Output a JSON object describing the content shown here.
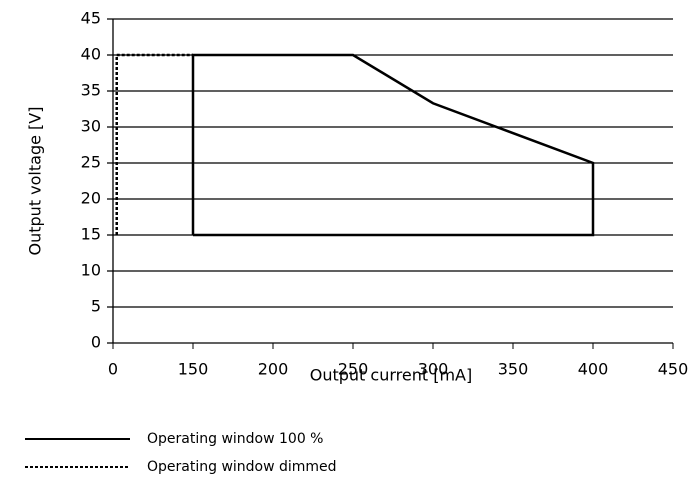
{
  "chart_data": {
    "type": "line",
    "xlabel": "Output current [mA]",
    "ylabel": "Output voltage [V]",
    "xlim": [
      0,
      450
    ],
    "xticks": [
      0,
      150,
      200,
      250,
      300,
      350,
      400,
      450
    ],
    "ylim": [
      0,
      45
    ],
    "yticks": [
      0,
      5,
      10,
      15,
      20,
      25,
      30,
      35,
      40,
      45
    ],
    "grid": true,
    "series": [
      {
        "name": "Operating window 100 %",
        "color": "#000000",
        "dash": "solid",
        "x": [
          150,
          150,
          250,
          300,
          400,
          400,
          150
        ],
        "values": [
          15,
          40,
          40,
          33.3,
          25,
          15,
          15
        ]
      },
      {
        "name": "Operating window dimmed",
        "color": "#000000",
        "dash": "dashed",
        "x": [
          7,
          7,
          150
        ],
        "values": [
          15,
          40,
          40
        ]
      }
    ]
  }
}
